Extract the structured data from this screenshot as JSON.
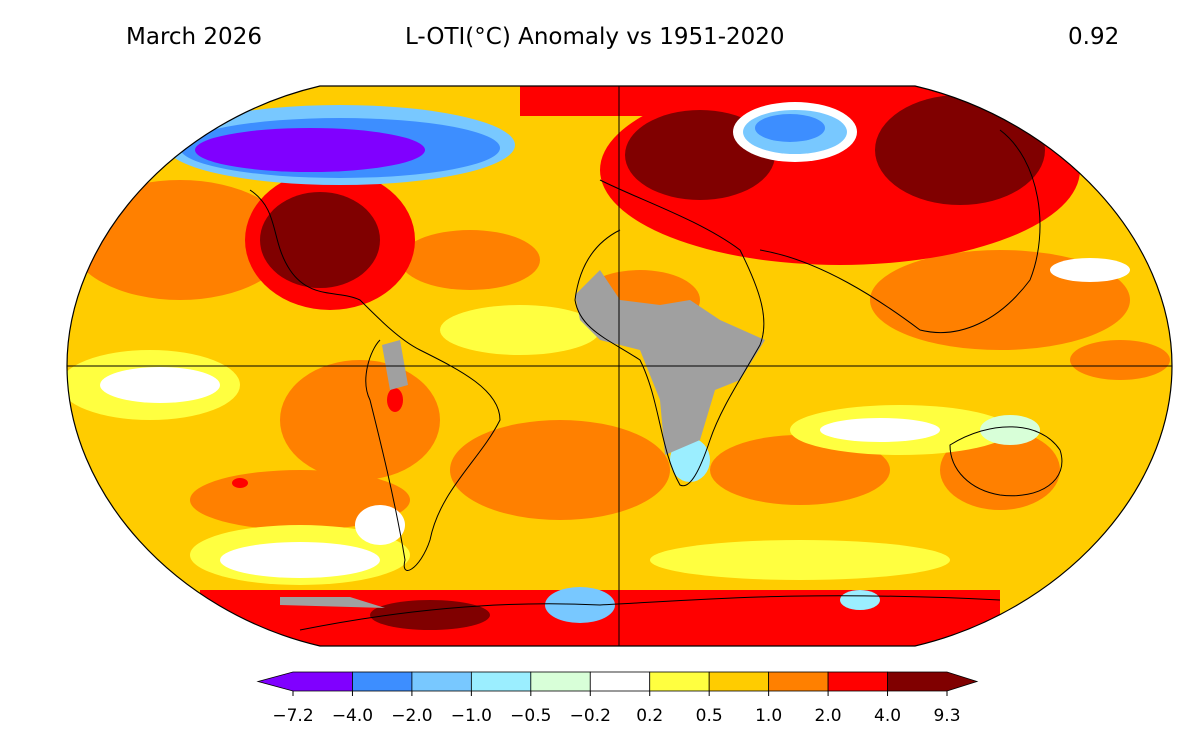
{
  "header": {
    "left": "March 2026",
    "center": "L-OTI(°C) Anomaly vs 1951-2020",
    "right": "0.92"
  },
  "map": {
    "projection": "Robinson",
    "no_data_color": "#a0a0a0"
  },
  "colorbar": {
    "ticks": [
      "−7.2",
      "−4.0",
      "−2.0",
      "−1.0",
      "−0.5",
      "−0.2",
      "0.2",
      "0.5",
      "1.0",
      "2.0",
      "4.0",
      "9.3"
    ],
    "colors": [
      "#8000ff",
      "#3d8eff",
      "#78c8ff",
      "#9beeff",
      "#d8ffd8",
      "#ffffff",
      "#ffff40",
      "#ffcc00",
      "#ff8000",
      "#ff0000",
      "#800000"
    ]
  }
}
